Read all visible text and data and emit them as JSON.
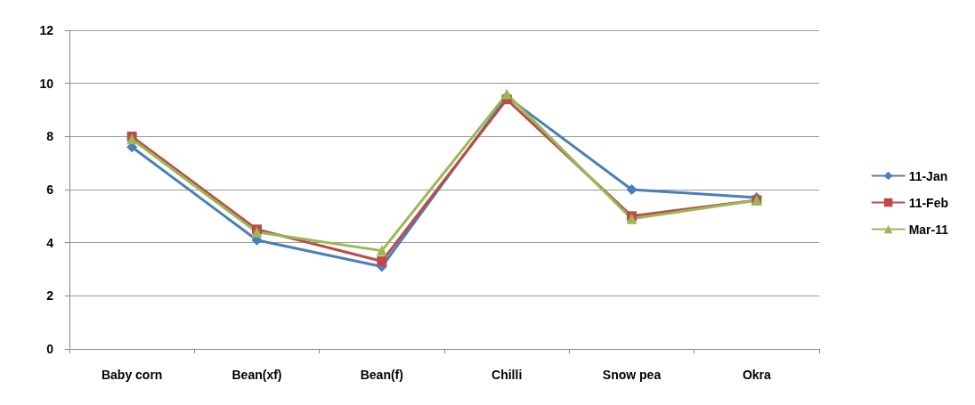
{
  "chart_data": {
    "type": "line",
    "categories": [
      "Baby corn",
      "Bean(xf)",
      "Bean(f)",
      "Chilli",
      "Snow pea",
      "Okra"
    ],
    "series": [
      {
        "name": "11-Jan",
        "color": "#4a7ebb",
        "marker": "diamond",
        "values": [
          7.6,
          4.1,
          3.1,
          9.5,
          6.0,
          5.7
        ]
      },
      {
        "name": "11-Feb",
        "color": "#be4b48",
        "marker": "square",
        "values": [
          8.0,
          4.5,
          3.3,
          9.4,
          5.0,
          5.6
        ]
      },
      {
        "name": "Mar-11",
        "color": "#98b954",
        "marker": "triangle",
        "values": [
          7.9,
          4.4,
          3.7,
          9.6,
          4.9,
          5.6
        ]
      }
    ],
    "ylim": [
      0,
      12
    ],
    "yticks": [
      0,
      2,
      4,
      6,
      8,
      10,
      12
    ],
    "grid": "y",
    "legend": "right",
    "line_style": "solid"
  }
}
